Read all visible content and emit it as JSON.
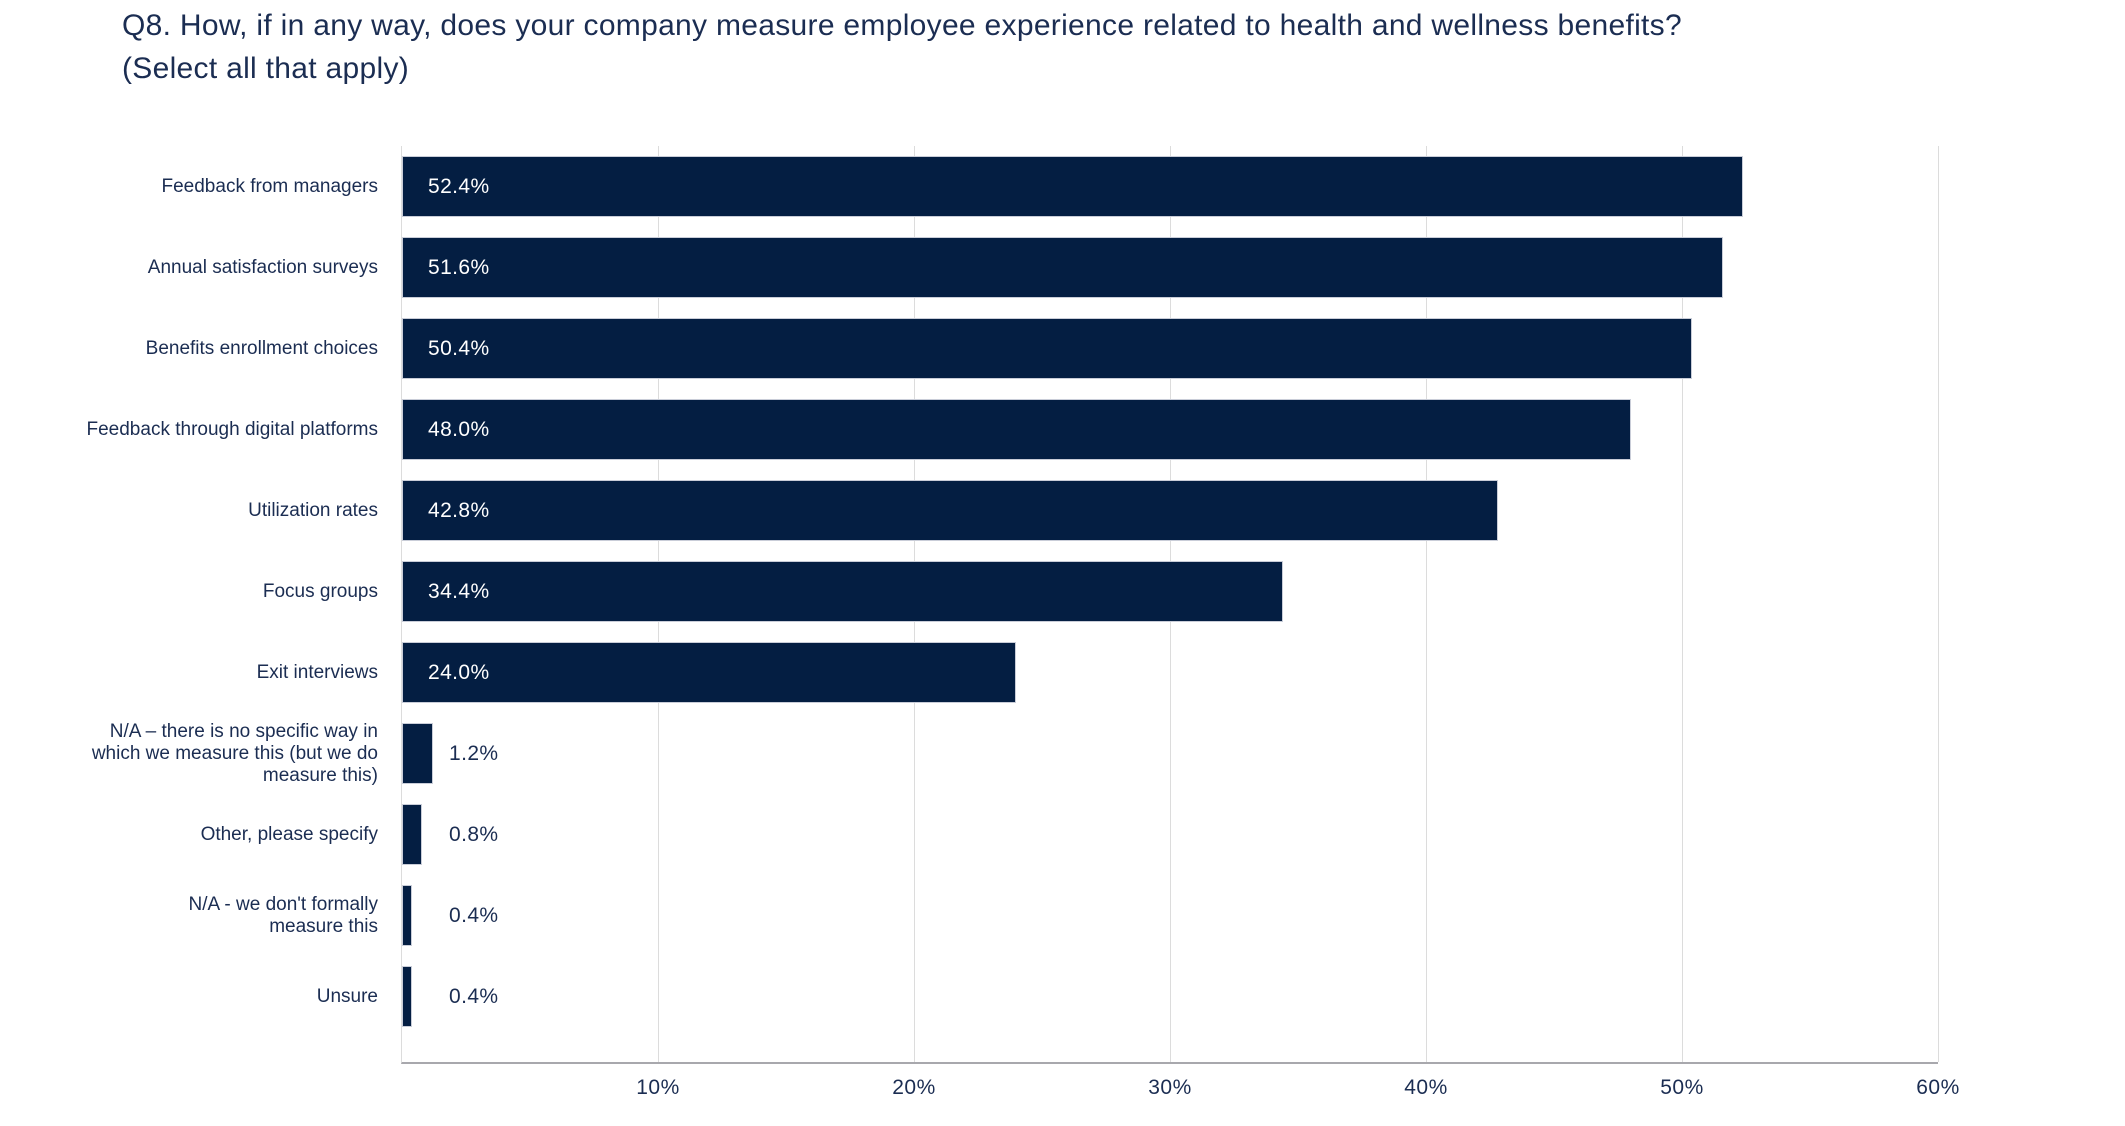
{
  "title": "Q8. How, if in any way, does your company measure employee experience related to health and wellness benefits? (Select all that apply)",
  "colors": {
    "bar": "#041e42",
    "text": "#1b2d52",
    "value_inside": "#ffffff",
    "gridline": "#dcdcdc",
    "axis_line": "#a8a8ad",
    "background": "#ffffff"
  },
  "chart_data": {
    "type": "bar",
    "orientation": "horizontal",
    "title": "Q8. How, if in any way, does your company measure employee experience related to health and wellness benefits? (Select all that apply)",
    "xlabel": "",
    "ylabel": "",
    "xlim": [
      0,
      60
    ],
    "grid": true,
    "legend": false,
    "value_label_threshold_inside": 10,
    "categories": [
      "Feedback from managers",
      "Annual satisfaction surveys",
      "Benefits enrollment choices",
      "Feedback through digital platforms",
      "Utilization rates",
      "Focus groups",
      "Exit interviews",
      "N/A – there is no specific way in\nwhich we measure this (but we do\nmeasure this)",
      "Other, please specify",
      "N/A - we don't formally\nmeasure this",
      "Unsure"
    ],
    "values": [
      52.4,
      51.6,
      50.4,
      48.0,
      42.8,
      34.4,
      24.0,
      1.2,
      0.8,
      0.4,
      0.4
    ],
    "value_labels": [
      "52.4%",
      "51.6%",
      "50.4%",
      "48.0%",
      "42.8%",
      "34.4%",
      "24.0%",
      "1.2%",
      "0.8%",
      "0.4%",
      "0.4%"
    ],
    "x_ticks": [
      {
        "value": 10,
        "label": "10%"
      },
      {
        "value": 20,
        "label": "20%"
      },
      {
        "value": 30,
        "label": "30%"
      },
      {
        "value": 40,
        "label": "40%"
      },
      {
        "value": 50,
        "label": "50%"
      },
      {
        "value": 60,
        "label": "60%"
      }
    ]
  }
}
